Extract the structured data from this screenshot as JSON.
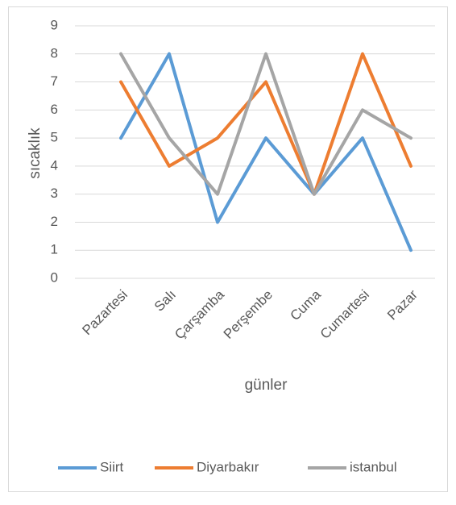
{
  "chart_data": {
    "type": "line",
    "categories": [
      "Pazartesi",
      "Salı",
      "Çarşamba",
      "Perşembe",
      "Cuma",
      "Cumartesi",
      "Pazar"
    ],
    "series": [
      {
        "name": "Siirt",
        "color": "#5b9bd5",
        "values": [
          5,
          8,
          2,
          5,
          3,
          5,
          1
        ]
      },
      {
        "name": "Diyarbakır",
        "color": "#ed7d31",
        "values": [
          7,
          4,
          5,
          7,
          3,
          8,
          4
        ]
      },
      {
        "name": "istanbul",
        "color": "#a5a5a5",
        "values": [
          8,
          5,
          3,
          8,
          3,
          6,
          5
        ]
      }
    ],
    "ylim": [
      0,
      9
    ],
    "yticks": [
      0,
      1,
      2,
      3,
      4,
      5,
      6,
      7,
      8,
      9
    ],
    "grid": true,
    "xlabel": "günler",
    "ylabel": "sıcaklık",
    "legend": "bottom"
  }
}
